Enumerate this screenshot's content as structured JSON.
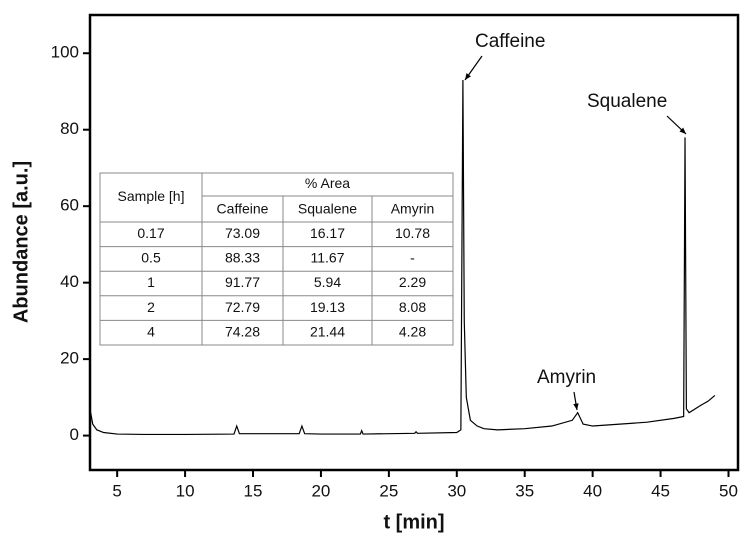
{
  "chart_data": {
    "type": "line",
    "xlabel": "t [min]",
    "ylabel": "Abundance [a.u.]",
    "xlim": [
      3,
      50.7
    ],
    "ylim": [
      -9,
      110
    ],
    "xticks": [
      5,
      10,
      15,
      20,
      25,
      30,
      35,
      40,
      45,
      50
    ],
    "yticks": [
      0,
      20,
      40,
      60,
      80,
      100
    ],
    "series": [
      {
        "color": "#000000",
        "x": [
          3.05,
          3.2,
          3.5,
          4,
          5,
          7,
          10,
          13.6,
          13.8,
          14,
          18.4,
          18.6,
          18.8,
          20,
          22.9,
          23,
          23.1,
          26.9,
          27,
          27.1,
          30,
          30.3,
          30.45,
          30.55,
          30.7,
          31,
          31.5,
          32,
          33,
          35,
          37,
          38.5,
          38.9,
          39.3,
          40,
          42,
          44,
          46,
          46.7,
          46.8,
          46.9,
          47.1,
          48,
          48.5,
          49
        ],
        "values": [
          6,
          3,
          1.5,
          0.8,
          0.4,
          0.3,
          0.3,
          0.4,
          2.5,
          0.5,
          0.5,
          2.5,
          0.5,
          0.4,
          0.4,
          1.3,
          0.4,
          0.6,
          1,
          0.6,
          0.8,
          1.5,
          93,
          30,
          10,
          4,
          2.5,
          1.8,
          1.5,
          1.8,
          2.5,
          4,
          6,
          3,
          2.5,
          3,
          3.5,
          4.5,
          5,
          78,
          7,
          6,
          8,
          9,
          10.5
        ]
      }
    ],
    "annotations": [
      "Caffeine",
      "Squalene",
      "Amyrin"
    ],
    "table": {
      "header": [
        "Sample [h]",
        "% Area"
      ],
      "columns": [
        "Caffeine",
        "Squalene",
        "Amyrin"
      ],
      "rows": [
        [
          "0.17",
          "73.09",
          "16.17",
          "10.78"
        ],
        [
          "0.5",
          "88.33",
          "11.67",
          "-"
        ],
        [
          "1",
          "91.77",
          "5.94",
          "2.29"
        ],
        [
          "2",
          "72.79",
          "19.13",
          "8.08"
        ],
        [
          "4",
          "74.28",
          "21.44",
          "4.28"
        ]
      ]
    }
  }
}
